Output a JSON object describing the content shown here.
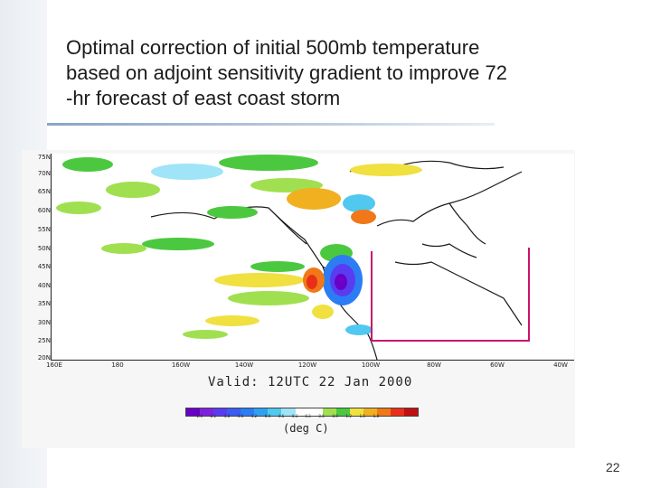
{
  "slide": {
    "title": "Optimal correction of initial 500mb temperature\nbased on adjoint sensitivity gradient to improve   72\n-hr forecast of east coast storm",
    "page_number": "22"
  },
  "map": {
    "lat_labels": [
      "75N",
      "70N",
      "65N",
      "60N",
      "55N",
      "50N",
      "45N",
      "40N",
      "35N",
      "30N",
      "25N",
      "20N"
    ],
    "lon_labels": [
      "160E",
      "180",
      "160W",
      "140W",
      "120W",
      "100W",
      "80W",
      "60W",
      "40W"
    ],
    "valid_text": "Valid: 12UTC 22 Jan 2000",
    "units_label": "(deg C)",
    "colorbar_ticks": [
      "-2.4",
      "-2.1",
      "-1.8",
      "-1.5",
      "-1.2",
      "-0.9",
      "-0.6",
      "-0.3",
      "0.3",
      "0.6",
      "0.9",
      "1.2",
      "1.5",
      "1.8"
    ],
    "colorbar_colors": [
      "#6a00c8",
      "#7e22e0",
      "#5a3cf0",
      "#3a5cf4",
      "#2c7cf4",
      "#30a0f0",
      "#50c8f0",
      "#a0e4f8",
      "#ffffff",
      "#ffffff",
      "#a0e050",
      "#4cc840",
      "#f0e040",
      "#f0b020",
      "#f07818",
      "#e83018",
      "#c01010"
    ],
    "box_color": "#c8146e"
  }
}
